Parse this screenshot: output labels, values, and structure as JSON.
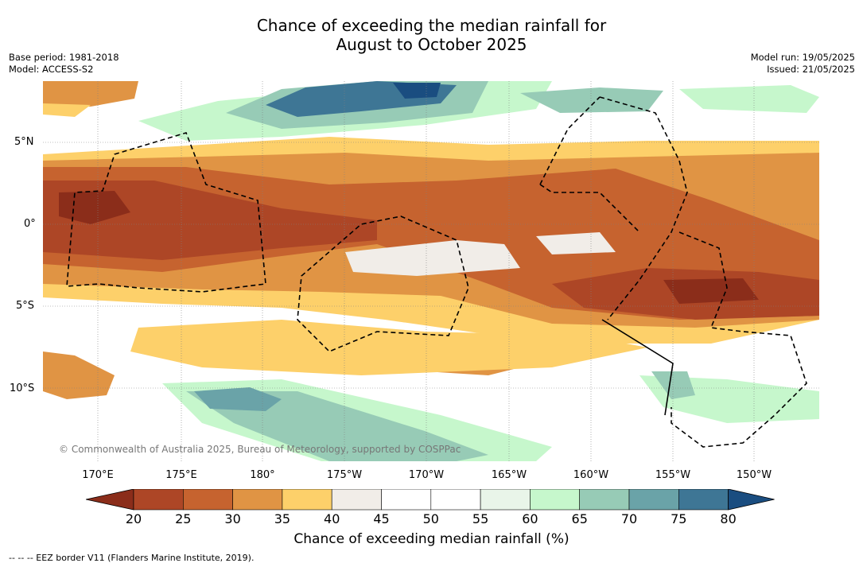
{
  "title_line1": "Chance of exceeding the median rainfall for",
  "title_line2": "August to October 2025",
  "meta_left": {
    "base_period": "Base period: 1981-2018",
    "model": "Model: ACCESS-S2"
  },
  "meta_right": {
    "model_run": "Model run: 19/05/2025",
    "issued": "Issued: 21/05/2025"
  },
  "copyright": "© Commonwealth of Australia 2025, Bureau of Meteorology, supported by COSPPac",
  "lat_labels": [
    "5°N",
    "0°",
    "5°S",
    "10°S"
  ],
  "lon_labels": [
    "170°E",
    "175°E",
    "180°",
    "175°W",
    "170°W",
    "165°W",
    "160°W",
    "155°W",
    "150°W"
  ],
  "colorbar": {
    "ticks": [
      "20",
      "25",
      "30",
      "35",
      "40",
      "45",
      "50",
      "55",
      "60",
      "65",
      "70",
      "75",
      "80"
    ],
    "colors": [
      "#8b2d1a",
      "#ad4626",
      "#c6632f",
      "#e09444",
      "#fdd06a",
      "#f1ede8",
      "#ffffff",
      "#ffffff",
      "#e9f5e9",
      "#c6f7cc",
      "#97cbb6",
      "#6aa3a8",
      "#3e7695",
      "#1a4d80"
    ],
    "label": "Chance of exceeding median rainfall (%)"
  },
  "footer": "--  --  -- EEZ border V11 (Flanders Marine Institute, 2019)."
}
